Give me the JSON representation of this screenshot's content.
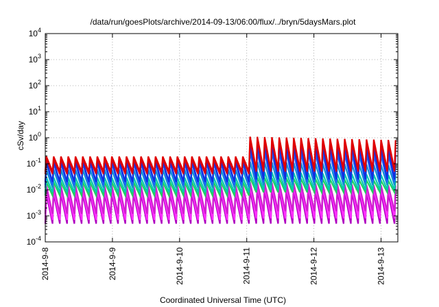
{
  "chart_data": {
    "type": "line",
    "title": "/data/run/goesPlots/archive/2014-09-13/06:00/flux/../bryn/5daysMars.plot",
    "xlabel": "Coordinated Universal Time (UTC)",
    "ylabel": "cSv/day",
    "y_scale": "log",
    "grid": true,
    "ylim": [
      0.0001,
      10000
    ],
    "xlim": [
      "2014-09-08 00:00",
      "2014-09-13 06:00"
    ],
    "x_ticks": [
      "2014-9-8",
      "2014-9-9",
      "2014-9-10",
      "2014-9-11",
      "2014-9-12",
      "2014-9-13"
    ],
    "y_ticks": [
      {
        "base": "10",
        "exp": "-4"
      },
      {
        "base": "10",
        "exp": "-3"
      },
      {
        "base": "10",
        "exp": "-2"
      },
      {
        "base": "10",
        "exp": "-1"
      },
      {
        "base": "10",
        "exp": "0"
      },
      {
        "base": "10",
        "exp": "1"
      },
      {
        "base": "10",
        "exp": "2"
      },
      {
        "base": "10",
        "exp": "3"
      },
      {
        "base": "10",
        "exp": "4"
      }
    ],
    "series_style": {
      "cycle_hours": 2.6,
      "colors": [
        "#e00000",
        "#cc0022",
        "#1030e0",
        "#2060ff",
        "#1090d0",
        "#00c8b0",
        "#20d060",
        "#d020d0",
        "#ff30ff",
        "#b000c0"
      ]
    },
    "series": [
      {
        "color": "#e00000",
        "peak_before": 0.19,
        "trough_before": 0.05,
        "peak_after": 1.1,
        "trough_after": 0.06
      },
      {
        "color": "#cc0022",
        "peak_before": 0.15,
        "trough_before": 0.04,
        "peak_after": 0.8,
        "trough_after": 0.05
      },
      {
        "color": "#1030e0",
        "peak_before": 0.13,
        "trough_before": 0.02,
        "peak_after": 0.55,
        "trough_after": 0.025
      },
      {
        "color": "#2060ff",
        "peak_before": 0.11,
        "trough_before": 0.015,
        "peak_after": 0.3,
        "trough_after": 0.02
      },
      {
        "color": "#1090d0",
        "peak_before": 0.06,
        "trough_before": 0.012,
        "peak_after": 0.12,
        "trough_after": 0.015
      },
      {
        "color": "#00c8b0",
        "peak_before": 0.03,
        "trough_before": 0.008,
        "peak_after": 0.05,
        "trough_after": 0.01
      },
      {
        "color": "#20d060",
        "peak_before": 0.02,
        "trough_before": 0.006,
        "peak_after": 0.03,
        "trough_after": 0.008
      },
      {
        "color": "#d020d0",
        "peak_before": 0.015,
        "trough_before": 0.0012,
        "peak_after": 0.02,
        "trough_after": 0.0015
      },
      {
        "color": "#ff30ff",
        "peak_before": 0.01,
        "trough_before": 0.0007,
        "peak_after": 0.015,
        "trough_after": 0.0008
      },
      {
        "color": "#b000c0",
        "peak_before": 0.007,
        "trough_before": 0.0005,
        "peak_after": 0.01,
        "trough_after": 0.0005
      }
    ],
    "step_up_date": "2014-09-11 00:00"
  }
}
